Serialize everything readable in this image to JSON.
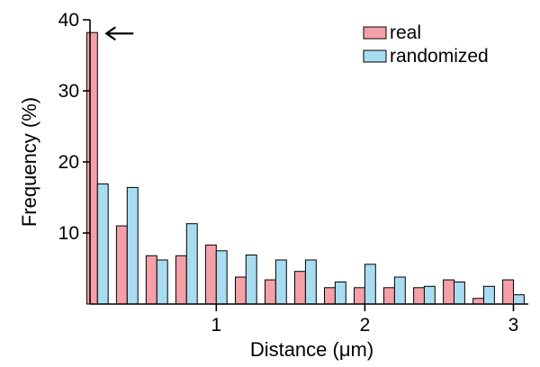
{
  "chart_data": {
    "type": "bar",
    "xlabel": "Distance (μm)",
    "ylabel": "Frequency (%)",
    "ylim": [
      0,
      40
    ],
    "xlim": [
      0.15,
      3.1
    ],
    "yticks": [
      10,
      20,
      30,
      40
    ],
    "xticks": [
      1,
      2,
      3
    ],
    "legend_position": "top-right",
    "x": [
      0.2,
      0.4,
      0.6,
      0.8,
      1.0,
      1.2,
      1.4,
      1.6,
      1.8,
      2.0,
      2.2,
      2.4,
      2.6,
      2.8,
      3.0
    ],
    "series": [
      {
        "name": "real",
        "color": "#f4a0a8",
        "values": [
          38.2,
          11.0,
          6.8,
          6.8,
          8.3,
          3.8,
          3.4,
          4.6,
          2.3,
          2.3,
          2.3,
          2.3,
          3.4,
          0.8,
          3.4
        ]
      },
      {
        "name": "randomized",
        "color": "#a8dcf0",
        "values": [
          16.9,
          16.4,
          6.2,
          11.3,
          7.5,
          6.9,
          6.2,
          6.2,
          3.1,
          5.6,
          3.8,
          2.5,
          3.1,
          2.5,
          1.3
        ]
      }
    ],
    "annotations": [
      {
        "type": "arrow",
        "target_series": "real",
        "target_index": 0,
        "direction": "left"
      }
    ]
  }
}
